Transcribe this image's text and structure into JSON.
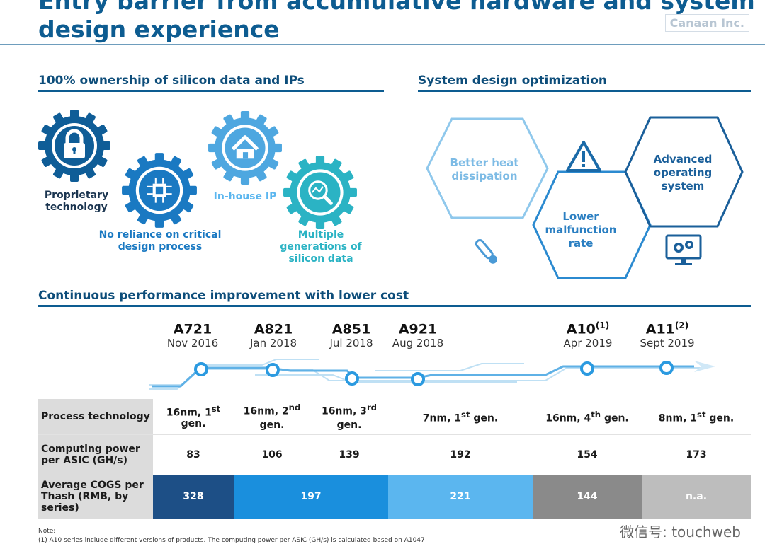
{
  "header": {
    "title_line1": "Entry barrier from accumulative hardware and system",
    "title_line2": "design experience",
    "brand": "Canaan Inc."
  },
  "left_section": {
    "heading": "100% ownership of silicon data and IPs",
    "items": [
      {
        "label": "Proprietary technology",
        "icon": "lock-icon"
      },
      {
        "label": "No reliance on critical design process",
        "icon": "chip-icon"
      },
      {
        "label": "In-house IP",
        "icon": "house-icon"
      },
      {
        "label": "Multiple generations of silicon data",
        "icon": "magnifier-chart-icon"
      }
    ]
  },
  "right_section": {
    "heading": "System design optimization",
    "items": [
      {
        "label": "Better heat dissipation",
        "icon": "thermometer-icon"
      },
      {
        "label": "Lower malfunction rate",
        "icon": "warning-icon"
      },
      {
        "label": "Advanced operating system",
        "icon": "monitor-gears-icon"
      }
    ]
  },
  "timeline": {
    "heading": "Continuous performance improvement with lower cost",
    "chips": [
      {
        "name": "A721",
        "sup": "",
        "date": "Nov 2016"
      },
      {
        "name": "A821",
        "sup": "",
        "date": "Jan 2018"
      },
      {
        "name": "A851",
        "sup": "",
        "date": "Jul 2018"
      },
      {
        "name": "A921",
        "sup": "",
        "date": "Aug 2018"
      },
      {
        "name": "A10",
        "sup": "(1)",
        "date": "Apr 2019"
      },
      {
        "name": "A11",
        "sup": "(2)",
        "date": "Sept 2019"
      }
    ]
  },
  "table": {
    "row_headers": [
      "Process technology",
      "Computing power per ASIC (GH/s)",
      "Average COGS per Thash (RMB, by series)"
    ],
    "process": [
      {
        "main": "16nm, 1",
        "sup": "st",
        "tail": " gen."
      },
      {
        "main": "16nm, 2",
        "sup": "nd",
        "tail": " gen."
      },
      {
        "main": "16nm, 3",
        "sup": "rd",
        "tail": " gen."
      },
      {
        "main": "7nm, 1",
        "sup": "st",
        "tail": " gen."
      },
      {
        "main": "16nm, 4",
        "sup": "th",
        "tail": " gen."
      },
      {
        "main": "8nm, 1",
        "sup": "st",
        "tail": " gen."
      }
    ],
    "computing_power": [
      "83",
      "106",
      "139",
      "192",
      "154",
      "173"
    ],
    "cogs": [
      "328",
      "197",
      "221",
      "144",
      "n.a."
    ],
    "cogs_colors": [
      "#1d4f86",
      "#1a8fdd",
      "#5bb6ef",
      "#8a8a8a",
      "#bdbdbd"
    ]
  },
  "notes": {
    "label": "Note:",
    "line1": "(1)      A10 series include different versions of products. The computing power per ASIC (GH/s) is calculated based on A1047"
  },
  "watermark": "微信号: touchweb"
}
